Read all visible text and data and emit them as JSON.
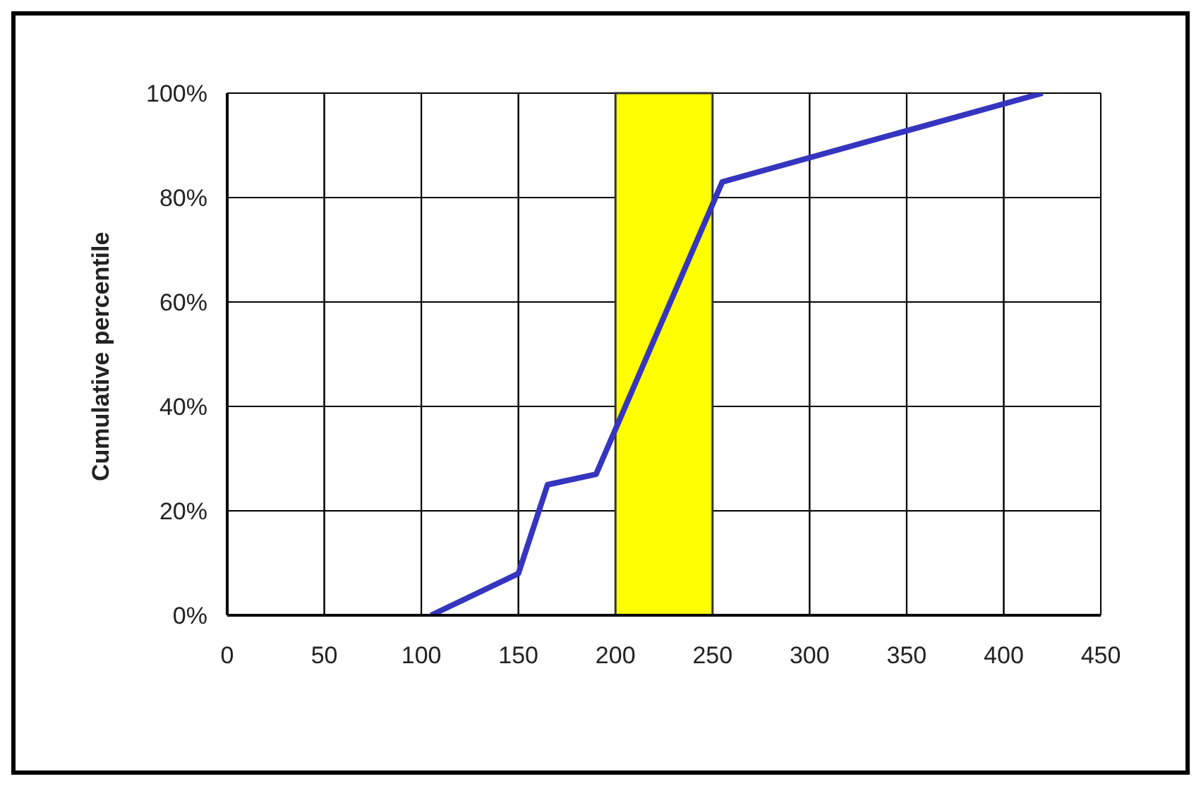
{
  "chart_data": {
    "type": "line",
    "ylabel": "Cumulative percentile",
    "x": [
      105,
      150,
      165,
      190,
      255,
      420
    ],
    "series": [
      {
        "color": "#3535c0",
        "values": [
          0,
          8,
          25,
          27,
          83,
          100
        ]
      }
    ],
    "xlim": [
      0,
      450
    ],
    "xticks": [
      0,
      50,
      100,
      150,
      200,
      250,
      300,
      350,
      400,
      450
    ],
    "ylim": [
      0,
      100
    ],
    "yticks": [
      {
        "value": 0,
        "label": "0%"
      },
      {
        "value": 20,
        "label": "20%"
      },
      {
        "value": 40,
        "label": "40%"
      },
      {
        "value": 60,
        "label": "60%"
      },
      {
        "value": 80,
        "label": "80%"
      },
      {
        "value": 100,
        "label": "100%"
      }
    ],
    "bands": [
      {
        "axis": "x",
        "from": 200,
        "to": 250,
        "color": "#ffff00"
      }
    ],
    "grid": true,
    "marker": "none",
    "line_style": "solid",
    "legend": false
  }
}
